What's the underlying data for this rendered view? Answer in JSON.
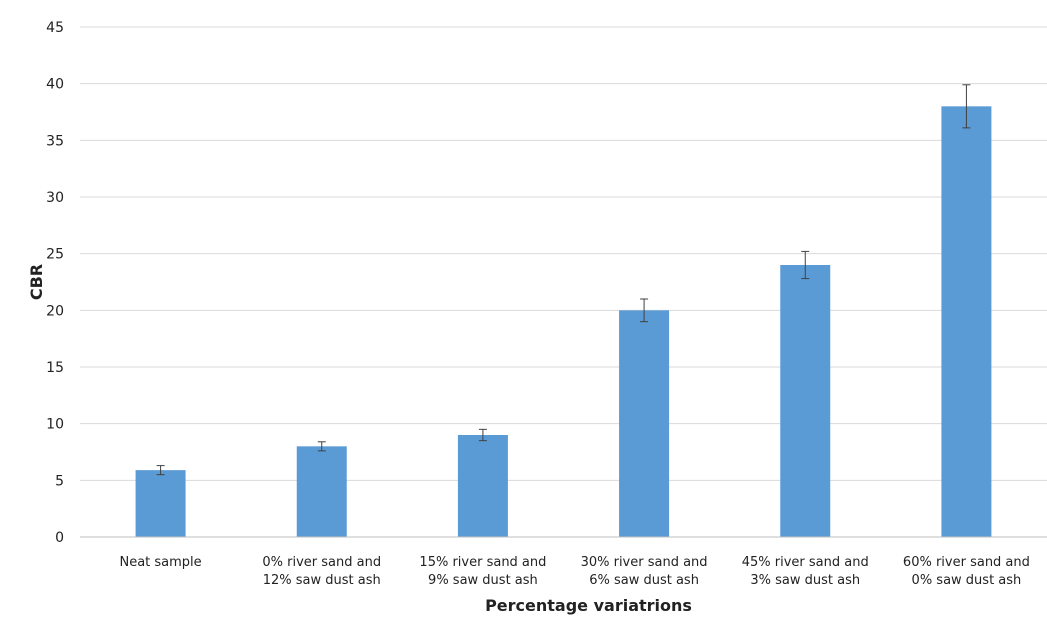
{
  "chart_data": {
    "type": "bar",
    "title": "",
    "xlabel": "Percentage variatrions",
    "ylabel": "CBR",
    "ylim": [
      0,
      45
    ],
    "yticks": [
      0,
      5,
      10,
      15,
      20,
      25,
      30,
      35,
      40,
      45
    ],
    "grid": true,
    "bar_color": "#5b9bd5",
    "categories": [
      [
        "Neat sample"
      ],
      [
        "0% river sand and",
        "12% saw dust ash"
      ],
      [
        "15% river sand and",
        "9% saw dust ash"
      ],
      [
        "30% river sand and",
        "6% saw dust ash"
      ],
      [
        "45% river sand and",
        "3% saw dust ash"
      ],
      [
        "60% river sand and",
        "0% saw dust ash"
      ]
    ],
    "values": [
      5.9,
      8.0,
      9.0,
      20.0,
      24.0,
      38.0
    ],
    "errors": [
      0.4,
      0.4,
      0.5,
      1.0,
      1.2,
      1.9
    ]
  }
}
